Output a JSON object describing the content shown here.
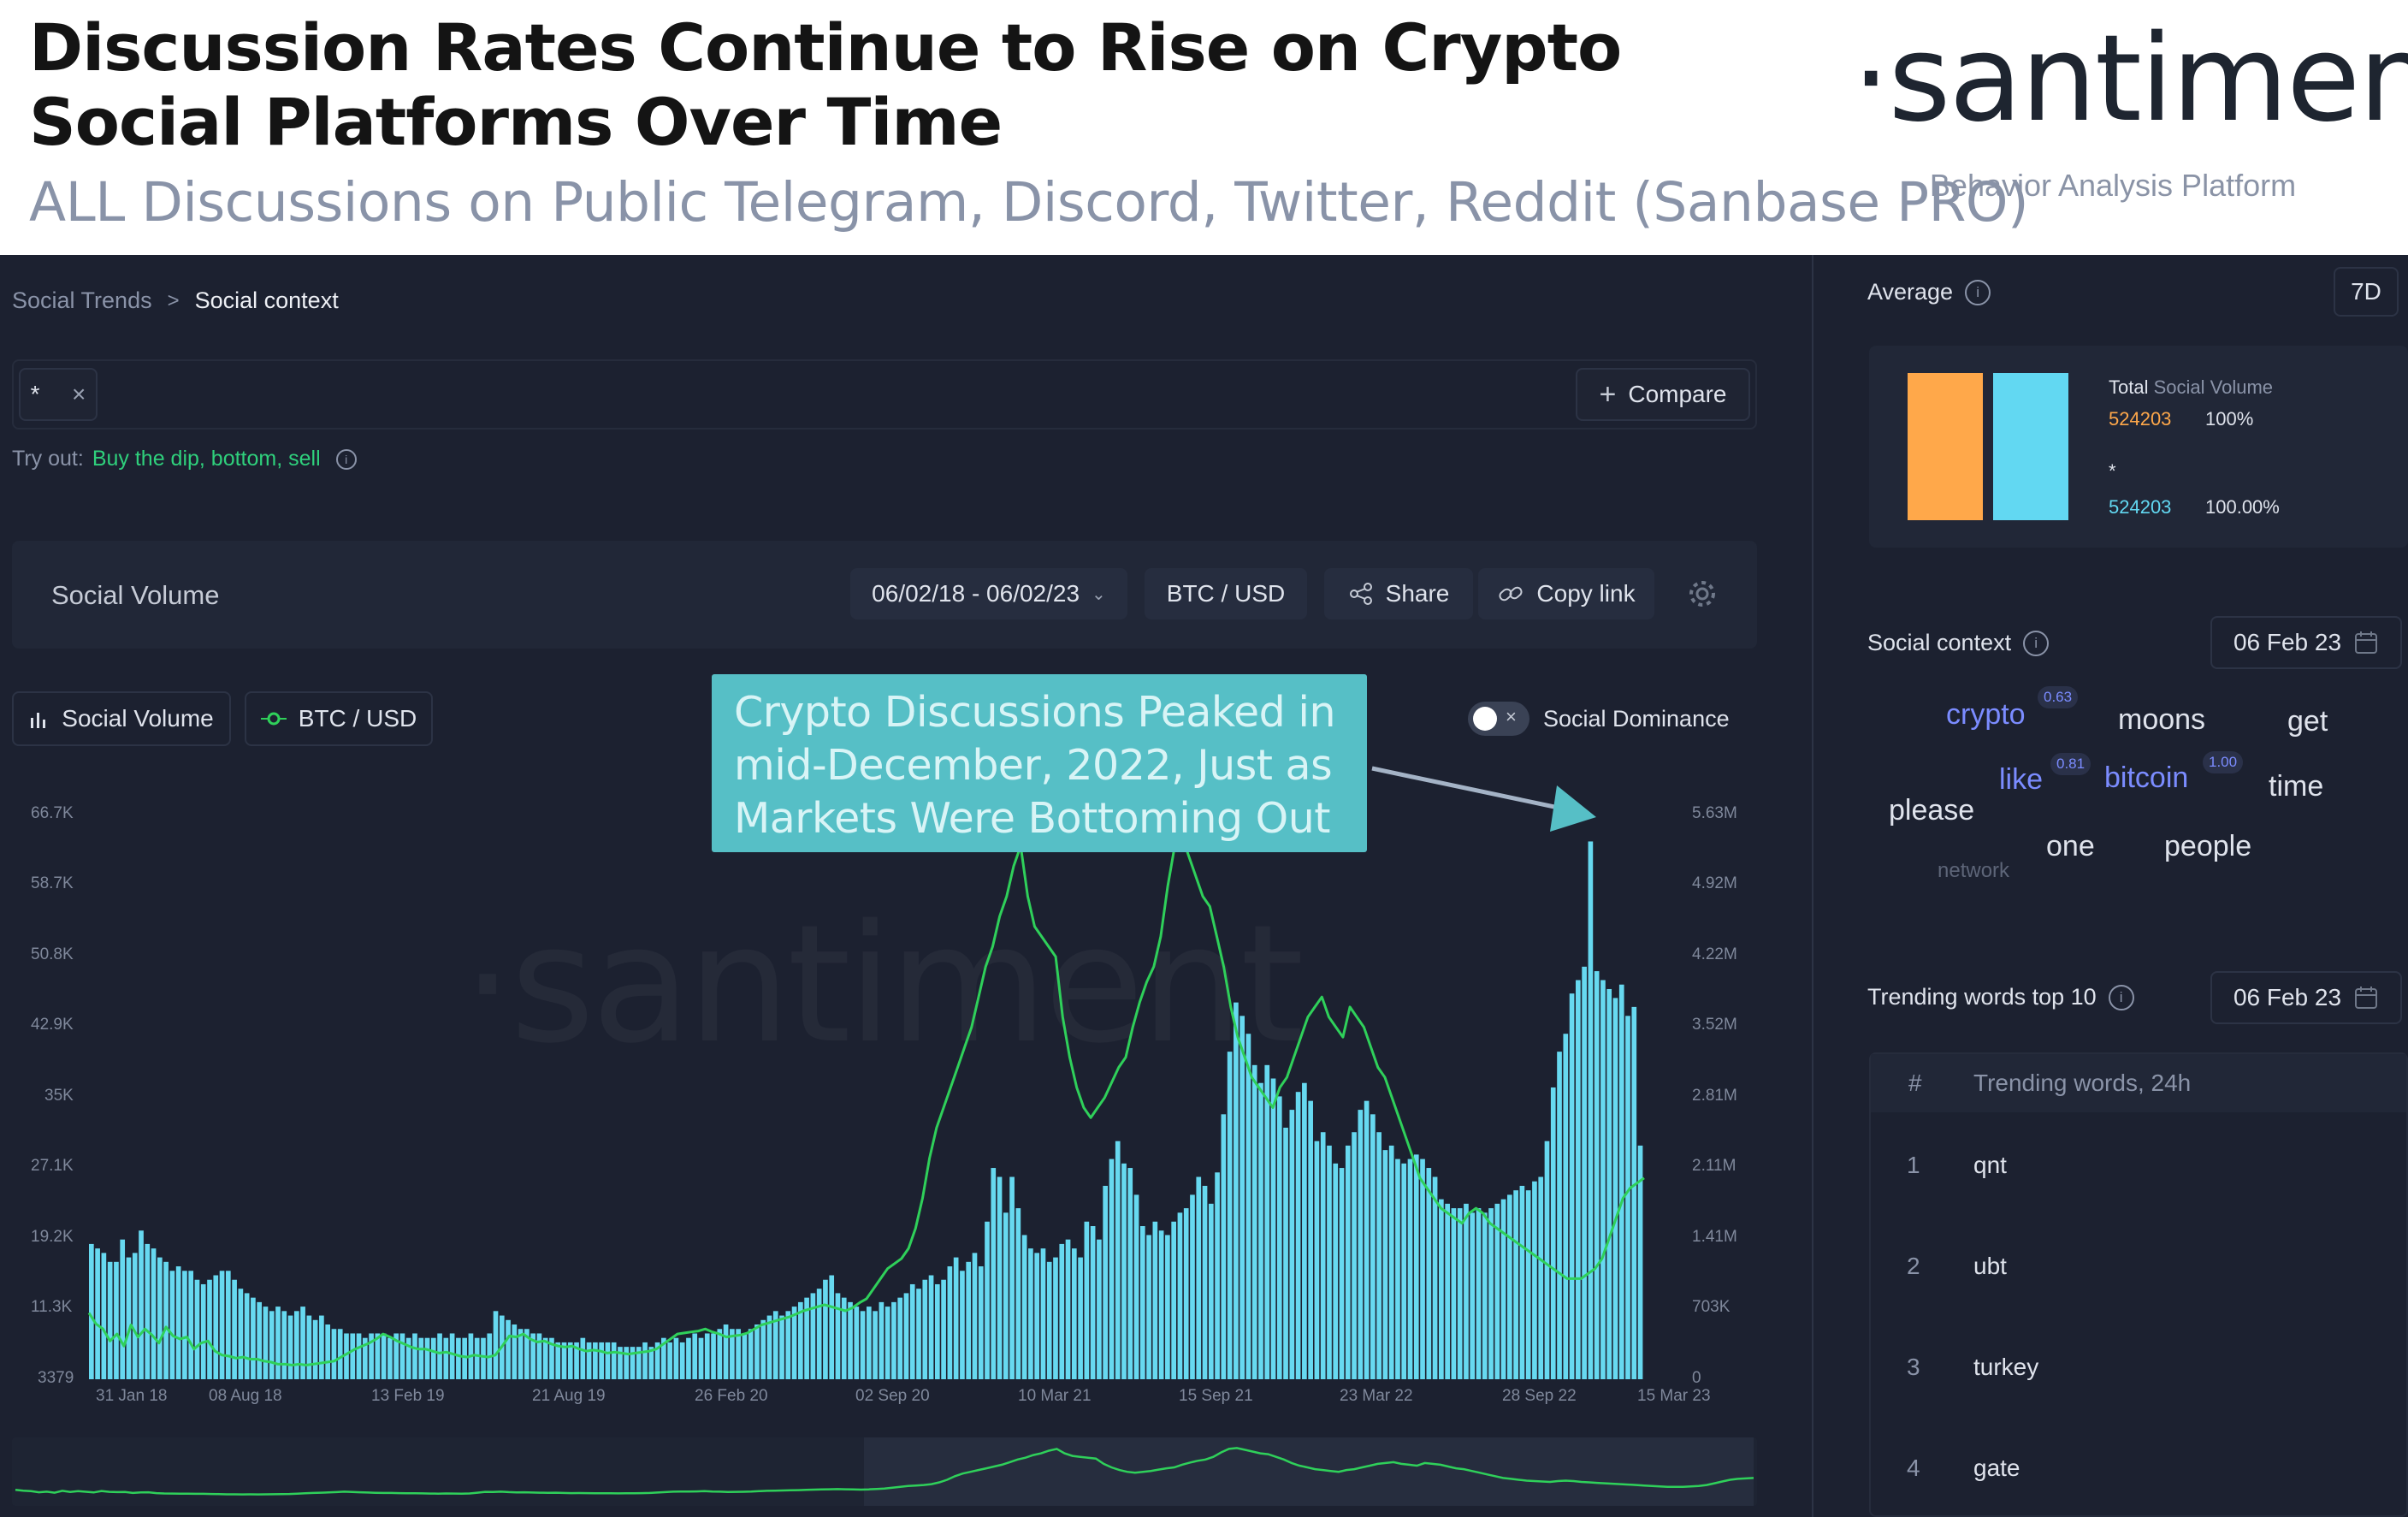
{
  "header": {
    "title": "Discussion Rates Continue to Rise on Crypto Social Platforms Over Time",
    "subtitle": "ALL Discussions on Public Telegram, Discord, Twitter, Reddit (Sanbase PRO)",
    "logo_text": "·santiment·",
    "logo_tagline": "Behavior Analysis Platform"
  },
  "breadcrumb": {
    "parent": "Social Trends",
    "separator": ">",
    "current": "Social context"
  },
  "search": {
    "tag": "*",
    "tag_close": "×",
    "compare_icon": "+",
    "compare_label": "Compare"
  },
  "try_out": {
    "prefix": "Try out:",
    "suggestion": "Buy the dip, bottom, sell"
  },
  "toolbar": {
    "title": "Social Volume",
    "date_range": "06/02/18 - 06/02/23",
    "pair": "BTC / USD",
    "share_label": "Share",
    "copy_link_label": "Copy link"
  },
  "legend": {
    "social_volume_label": "Social Volume",
    "btc_label": "BTC / USD",
    "social_dominance_label": "Social Dominance"
  },
  "annotation": {
    "text": "Crypto Discussions Peaked in mid-December, 2022, Just as Markets Were Bottoming Out"
  },
  "watermark": "·santiment",
  "chart_data": {
    "type": "bar",
    "x_tick_labels": [
      "31 Jan 18",
      "08 Aug 18",
      "13 Feb 19",
      "21 Aug 19",
      "26 Feb 20",
      "02 Sep 20",
      "10 Mar 21",
      "15 Sep 21",
      "23 Mar 22",
      "28 Sep 22",
      "15 Mar 23"
    ],
    "y_left_tick_labels": [
      "66.7K",
      "58.7K",
      "50.8K",
      "42.9K",
      "35K",
      "27.1K",
      "19.2K",
      "11.3K",
      "3379"
    ],
    "y_right_tick_labels": [
      "5.63M",
      "4.92M",
      "4.22M",
      "3.52M",
      "2.81M",
      "2.11M",
      "1.41M",
      "703K",
      "0"
    ],
    "ylim_left": [
      3379,
      66700
    ],
    "ylim_right": [
      0,
      5630000
    ],
    "series": [
      {
        "name": "Social Volume",
        "type": "bar",
        "axis": "left",
        "color": "#67d9f0",
        "values": [
          18500,
          18000,
          17500,
          16500,
          16500,
          19000,
          17000,
          17500,
          20000,
          18500,
          18000,
          17000,
          16500,
          15500,
          16000,
          15500,
          15500,
          14500,
          14000,
          14500,
          15000,
          15500,
          15500,
          14500,
          13500,
          13000,
          12500,
          12000,
          11500,
          11000,
          11500,
          11000,
          10500,
          11000,
          11500,
          10500,
          10000,
          10500,
          9500,
          9000,
          9000,
          8500,
          8500,
          8500,
          8000,
          8500,
          8500,
          8500,
          8000,
          8500,
          8500,
          8000,
          8500,
          8000,
          8000,
          8000,
          8500,
          8000,
          8500,
          8000,
          8000,
          8500,
          8000,
          8000,
          8500,
          11000,
          10500,
          10000,
          9500,
          9000,
          9000,
          8500,
          8500,
          8000,
          8000,
          7500,
          7500,
          7500,
          7500,
          8000,
          7500,
          7500,
          7500,
          7500,
          7500,
          7000,
          7000,
          7000,
          7000,
          7500,
          7000,
          7500,
          8000,
          7500,
          8000,
          7500,
          8000,
          8500,
          8000,
          8500,
          8500,
          9000,
          9500,
          9000,
          9000,
          8500,
          9000,
          9500,
          10000,
          10500,
          11000,
          10500,
          11000,
          11500,
          12000,
          12500,
          13000,
          13500,
          14500,
          15000,
          13000,
          12500,
          12000,
          11500,
          11000,
          11500,
          11000,
          12000,
          11500,
          12000,
          12500,
          13000,
          14000,
          13500,
          14500,
          15000,
          14000,
          14500,
          16000,
          17000,
          15500,
          16500,
          17500,
          16000,
          21000,
          27000,
          26000,
          22000,
          26000,
          22500,
          19500,
          18000,
          17500,
          18000,
          16500,
          17000,
          18500,
          19000,
          18000,
          17000,
          21000,
          20500,
          19000,
          25000,
          28000,
          30000,
          27500,
          27000,
          24000,
          20500,
          19500,
          21000,
          20000,
          19500,
          21000,
          22000,
          22500,
          24000,
          26000,
          25000,
          23000,
          26500,
          33000,
          40000,
          45500,
          44000,
          42000,
          38500,
          36500,
          38500,
          37000,
          35000,
          31500,
          33500,
          35500,
          36500,
          34500,
          30000,
          31000,
          29500,
          27500,
          27000,
          29500,
          31000,
          33500,
          34500,
          33000,
          31000,
          29000,
          29500,
          28000,
          27500,
          28000,
          28500,
          28000,
          27000,
          26000,
          23500,
          23000,
          22500,
          22500,
          23000,
          22000,
          22500,
          22000,
          22500,
          23000,
          23500,
          24000,
          24500,
          25000,
          24500,
          25500,
          26000,
          30000,
          36000,
          40000,
          42000,
          46500,
          48000,
          49500,
          63500,
          49000,
          48000,
          47000,
          46000,
          47500,
          44000,
          45000,
          29500
        ]
      },
      {
        "name": "BTC / USD",
        "type": "line",
        "axis": "right",
        "color": "#2fd05a",
        "values": [
          660000,
          550000,
          500000,
          380000,
          450000,
          330000,
          540000,
          420000,
          500000,
          440000,
          360000,
          520000,
          430000,
          400000,
          420000,
          300000,
          360000,
          380000,
          280000,
          240000,
          230000,
          210000,
          220000,
          200000,
          200000,
          180000,
          170000,
          150000,
          150000,
          140000,
          150000,
          140000,
          150000,
          160000,
          170000,
          180000,
          220000,
          260000,
          300000,
          330000,
          360000,
          400000,
          450000,
          420000,
          380000,
          350000,
          320000,
          300000,
          300000,
          280000,
          260000,
          270000,
          250000,
          230000,
          220000,
          240000,
          230000,
          220000,
          240000,
          330000,
          430000,
          420000,
          450000,
          400000,
          370000,
          380000,
          350000,
          330000,
          320000,
          330000,
          300000,
          280000,
          290000,
          280000,
          260000,
          270000,
          260000,
          250000,
          260000,
          270000,
          280000,
          300000,
          350000,
          400000,
          450000,
          460000,
          470000,
          480000,
          500000,
          470000,
          450000,
          420000,
          430000,
          440000,
          460000,
          500000,
          540000,
          560000,
          580000,
          600000,
          620000,
          650000,
          680000,
          700000,
          720000,
          740000,
          720000,
          700000,
          680000,
          710000,
          760000,
          800000,
          900000,
          1000000,
          1100000,
          1150000,
          1200000,
          1300000,
          1500000,
          1800000,
          2200000,
          2500000,
          2700000,
          2900000,
          3100000,
          3300000,
          3500000,
          3800000,
          4100000,
          4300000,
          4600000,
          4800000,
          5100000,
          5300000,
          4800000,
          4500000,
          4400000,
          4300000,
          4200000,
          3600000,
          3200000,
          2900000,
          2700000,
          2600000,
          2700000,
          2800000,
          2950000,
          3100000,
          3200000,
          3500000,
          3750000,
          3950000,
          4100000,
          4400000,
          4900000,
          5300000,
          5400000,
          5200000,
          5000000,
          4800000,
          4700000,
          4400000,
          4100000,
          3700000,
          3400000,
          3200000,
          3000000,
          2900000,
          2800000,
          2700000,
          2900000,
          3000000,
          3200000,
          3400000,
          3600000,
          3700000,
          3800000,
          3600000,
          3500000,
          3400000,
          3700000,
          3600000,
          3500000,
          3300000,
          3100000,
          3000000,
          2800000,
          2600000,
          2400000,
          2200000,
          2000000,
          1900000,
          1800000,
          1700000,
          1650000,
          1600000,
          1550000,
          1650000,
          1700000,
          1650000,
          1550000,
          1500000,
          1450000,
          1400000,
          1350000,
          1300000,
          1250000,
          1200000,
          1150000,
          1100000,
          1050000,
          1000000,
          1000000,
          1000000,
          1050000,
          1100000,
          1200000,
          1400000,
          1600000,
          1800000,
          1900000,
          1950000,
          2000000
        ]
      }
    ],
    "social_dominance": "off"
  },
  "average": {
    "label": "Average",
    "period": "7D",
    "total_label": "Total",
    "metric_label": "Social Volume",
    "total_value": "524203",
    "total_pct": "100%",
    "item_label": "*",
    "item_value": "524203",
    "item_pct": "100.00%",
    "colors": {
      "total": "#ffa84a",
      "item": "#62d8f2"
    }
  },
  "social_context": {
    "label": "Social context",
    "date": "06 Feb 23",
    "words": [
      {
        "text": "crypto",
        "score": "0.63"
      },
      {
        "text": "moons"
      },
      {
        "text": "get"
      },
      {
        "text": "like",
        "score": "0.81"
      },
      {
        "text": "bitcoin",
        "score": "1.00"
      },
      {
        "text": "time"
      },
      {
        "text": "please"
      },
      {
        "text": "one"
      },
      {
        "text": "people"
      },
      {
        "text": "network"
      }
    ]
  },
  "trending": {
    "label": "Trending words top 10",
    "date": "06 Feb 23",
    "col_num": "#",
    "col_words": "Trending words, 24h",
    "rows": [
      {
        "n": "1",
        "word": "qnt"
      },
      {
        "n": "2",
        "word": "ubt"
      },
      {
        "n": "3",
        "word": "turkey"
      },
      {
        "n": "4",
        "word": "gate"
      }
    ]
  },
  "icons": [
    "chevron-right-icon",
    "close-icon",
    "plus-icon",
    "info-icon",
    "chevron-down-icon",
    "share-icon",
    "link-icon",
    "gear-icon",
    "bar-chart-icon",
    "line-dot-icon",
    "toggle-icon",
    "calendar-icon",
    "arrow-icon"
  ]
}
